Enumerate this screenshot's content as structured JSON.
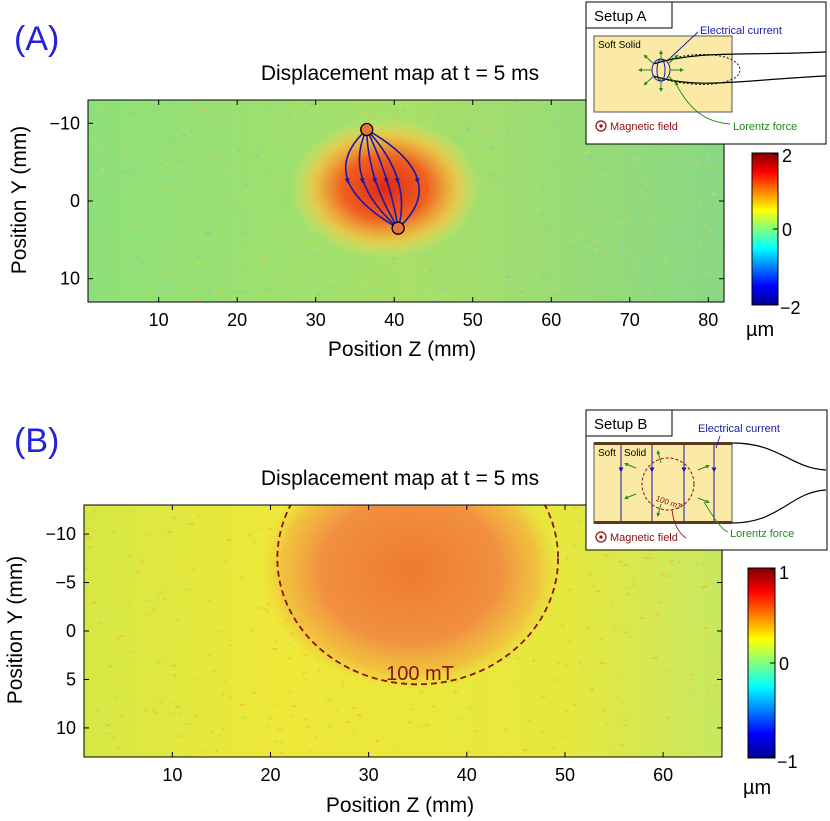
{
  "colors": {
    "panel_label": "#2222dd",
    "current": "#1a1aa8",
    "force": "#1f8a1f",
    "field": "#8b1010",
    "solid_fill": "#fbeaa5"
  },
  "chart_data": [
    {
      "type": "heatmap",
      "panel_label": "(A)",
      "title": "Displacement map at t = 5 ms",
      "xlabel": "Position Z (mm)",
      "ylabel": "Position Y (mm)",
      "xlim": [
        1,
        82
      ],
      "ylim": [
        13,
        -13
      ],
      "x_ticks": [
        10,
        20,
        30,
        40,
        50,
        60,
        70,
        80
      ],
      "y_ticks": [
        -10,
        0,
        10
      ],
      "colorbar": {
        "range": [
          -2,
          2
        ],
        "ticks": [
          2,
          0,
          -2
        ],
        "tick_labels": [
          "2",
          "0",
          "−2"
        ],
        "unit": "µm",
        "colormap": "jet"
      },
      "hotspot": {
        "center": [
          38,
          0
        ],
        "value": 1.6
      },
      "electrodes": [
        {
          "z": 36.5,
          "y": -9.2
        },
        {
          "z": 40.5,
          "y": 3.5
        }
      ],
      "inset": {
        "title": "Setup A",
        "labels": {
          "solid": "Soft Solid",
          "current": "Electrical current",
          "force": "Lorentz force",
          "field": "Magnetic field"
        }
      }
    },
    {
      "type": "heatmap",
      "panel_label": "(B)",
      "title": "Displacement map at t = 5 ms",
      "xlabel": "Position Z (mm)",
      "ylabel": "Position Y (mm)",
      "xlim": [
        1,
        66
      ],
      "ylim": [
        13,
        -13
      ],
      "x_ticks": [
        10,
        20,
        30,
        40,
        50,
        60
      ],
      "y_ticks": [
        -10,
        -5,
        0,
        5,
        10
      ],
      "colorbar": {
        "range": [
          -1,
          1
        ],
        "ticks": [
          1,
          0,
          -1
        ],
        "tick_labels": [
          "1",
          "0",
          "−1"
        ],
        "unit": "µm",
        "colormap": "jet"
      },
      "field_region": {
        "label": "100 mT",
        "center": [
          35,
          -7.5
        ],
        "radius_z": 14.3,
        "radius_y": 13
      },
      "inset": {
        "title": "Setup B",
        "labels": {
          "solid_a": "Soft",
          "solid_b": "Solid",
          "current": "Electrical current",
          "force": "Lorentz force",
          "field": "Magnetic field",
          "field_value": "100 mT"
        }
      }
    }
  ]
}
